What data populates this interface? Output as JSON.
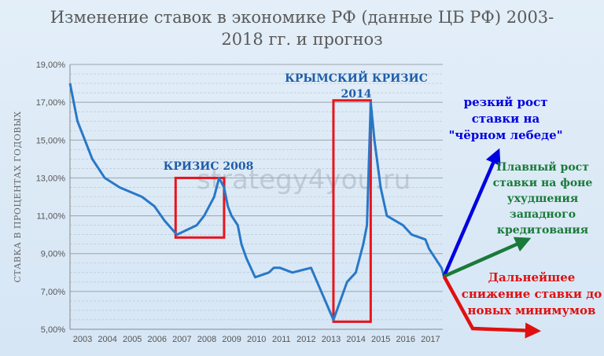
{
  "title_line1": "Изменение ставок в экономике РФ (данные ЦБ РФ) 2003-",
  "title_line2": "2018 гг. и прогноз",
  "watermark": "strategy4you.ru",
  "chart_data": {
    "type": "line",
    "title": "Изменение ставок в экономике РФ (данные ЦБ РФ) 2003-2018 гг. и прогноз",
    "ylabel": "СТАВКА В ПРОЦЕНТАХ ГОДОВЫХ",
    "xlabel": "",
    "ylim": [
      5,
      19
    ],
    "xlim": [
      2003,
      2018.6
    ],
    "yticks": [
      "5,00%",
      "7,00%",
      "9,00%",
      "11,00%",
      "13,00%",
      "15,00%",
      "17,00%",
      "19,00%"
    ],
    "ytick_values": [
      5,
      7,
      9,
      11,
      13,
      15,
      17,
      19
    ],
    "xticks": [
      "2003",
      "2004",
      "2005",
      "2006",
      "2007",
      "2008",
      "2009",
      "2010",
      "2011",
      "2012",
      "2013",
      "2014",
      "2015",
      "2016",
      "2017"
    ],
    "xtick_values": [
      2003,
      2004,
      2005,
      2006,
      2007,
      2008,
      2009,
      2010,
      2011,
      2012,
      2013,
      2014,
      2015,
      2016,
      2017
    ],
    "grid": true,
    "series_color": "#2878c8",
    "x": [
      2003.0,
      2003.3,
      2003.9,
      2004.4,
      2005.0,
      2005.9,
      2006.4,
      2006.8,
      2007.3,
      2007.7,
      2008.1,
      2008.4,
      2008.8,
      2009.0,
      2009.2,
      2009.35,
      2009.5,
      2009.75,
      2009.9,
      2010.1,
      2010.45,
      2011.0,
      2011.2,
      2011.45,
      2011.95,
      2012.7,
      2013.6,
      2014.15,
      2014.5,
      2014.8,
      2014.95,
      2015.1,
      2015.25,
      2015.5,
      2015.75,
      2016.4,
      2016.75,
      2017.3,
      2017.45,
      2017.95,
      2018.05
    ],
    "values": [
      18.0,
      16.0,
      14.0,
      13.0,
      12.5,
      12.0,
      11.5,
      10.75,
      10.0,
      10.25,
      10.5,
      11.0,
      12.0,
      13.0,
      12.5,
      11.5,
      11.0,
      10.5,
      9.5,
      8.75,
      7.75,
      8.0,
      8.25,
      8.25,
      8.0,
      8.25,
      5.5,
      7.5,
      8.0,
      9.5,
      10.5,
      17.0,
      15.0,
      12.5,
      11.0,
      10.5,
      10.0,
      9.75,
      9.25,
      8.25,
      7.8
    ],
    "annotations": [
      {
        "text": "КРИЗИС 2008",
        "color": "#1f5ea8"
      },
      {
        "text": "КРЫМСКИЙ КРИЗИС",
        "text2": "2014",
        "color": "#1f5ea8"
      },
      {
        "lines": [
          "резкий рост",
          "ставки на",
          "\"чёрном лебеде\""
        ],
        "color": "#0000e0"
      },
      {
        "lines": [
          "Плавный рост",
          "ставки на фоне",
          "ухудшения",
          "западного",
          "кредитования"
        ],
        "color": "#1a7a3a"
      },
      {
        "lines": [
          "Дальнейшее",
          "снижение ставки до",
          "новых минимумов"
        ],
        "color": "#e01010"
      }
    ],
    "crisis_boxes": [
      {
        "x0": 2007.25,
        "x1": 2009.2,
        "y0": 9.85,
        "y1": 13.0
      },
      {
        "x0": 2013.6,
        "x1": 2015.1,
        "y0": 5.4,
        "y1": 17.1
      }
    ],
    "forecast_arrows": [
      {
        "name": "sharp-rise",
        "color": "#0000e0",
        "to_x": 2020.0,
        "to_y": 14.0
      },
      {
        "name": "smooth-rise",
        "color": "#1a7a3a",
        "to_x": 2020.3,
        "to_y": 9.4
      },
      {
        "name": "decline",
        "color": "#e01010",
        "to_x": 2020.5,
        "to_y": 5.0
      }
    ]
  }
}
